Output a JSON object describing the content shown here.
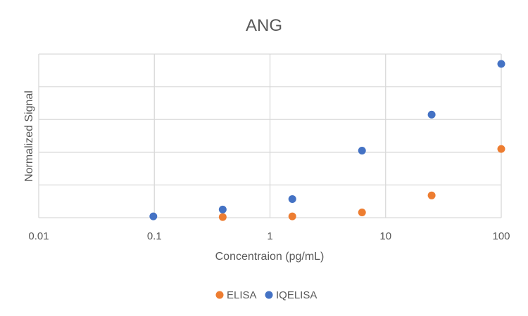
{
  "chart_data": {
    "type": "scatter",
    "title": "ANG",
    "xlabel": "Concentraion (pg/mL)",
    "ylabel": "Normalized Signal",
    "x_scale": "log",
    "xlim": [
      0.01,
      100
    ],
    "ylim": [
      0,
      5
    ],
    "x_tick_labels": [
      "0.01",
      "0.1",
      "1",
      "10",
      "100"
    ],
    "y_tick_labels_shown": false,
    "grid": true,
    "legend_position": "bottom",
    "series": [
      {
        "name": "ELISA",
        "color": "#ED7D31",
        "x": [
          0.39,
          1.56,
          6.25,
          25,
          100
        ],
        "y": [
          0.02,
          0.04,
          0.16,
          0.68,
          2.1
        ]
      },
      {
        "name": "IQELISA",
        "color": "#4472C4",
        "x": [
          0.098,
          0.39,
          1.56,
          6.25,
          25,
          100
        ],
        "y": [
          0.04,
          0.25,
          0.57,
          2.05,
          3.15,
          4.7
        ]
      }
    ]
  }
}
